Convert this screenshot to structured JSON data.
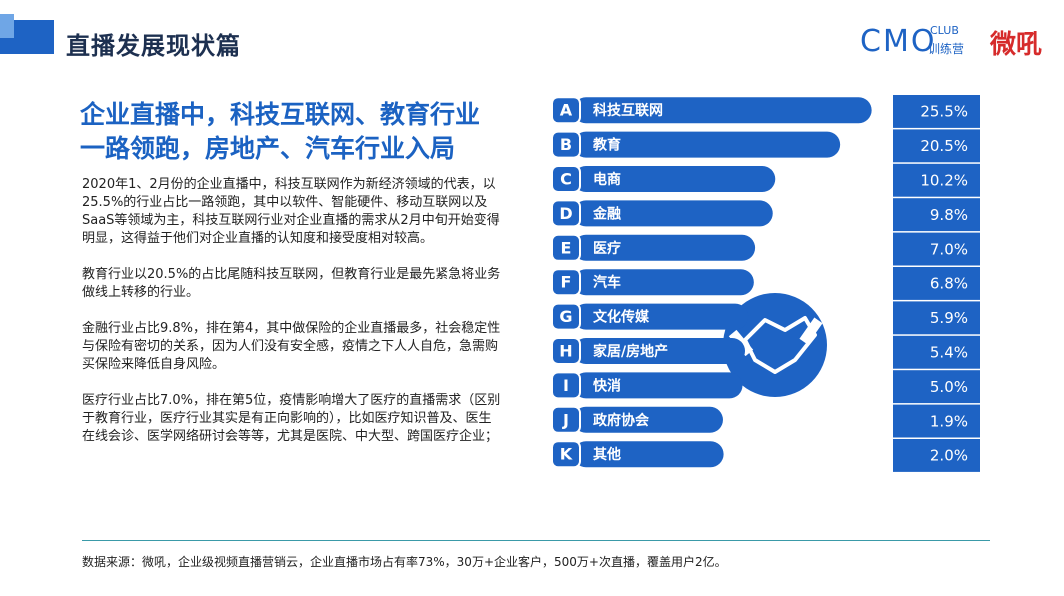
{
  "header": {
    "title": "直播发展现状篇",
    "brand": "CMO",
    "brand_club": "CLUB",
    "brand_sub": "训练营",
    "partner": "微吼"
  },
  "headline": [
    "企业直播中，科技互联网、教育行业",
    "一路领跑，房地产、汽车行业入局"
  ],
  "paragraphs": [
    "2020年1、2月份的企业直播中，科技互联网作为新经济领域的代表，以25.5%的行业占比一路领跑，其中以软件、智能硬件、移动互联网以及SaaS等领域为主，科技互联网行业对企业直播的需求从2月中旬开始变得明显，这得益于他们对企业直播的认知度和接受度相对较高。",
    "教育行业以20.5%的占比尾随科技互联网，但教育行业是最先紧急将业务做线上转移的行业。",
    "金融行业占比9.8%，排在第4，其中做保险的企业直播最多，社会稳定性与保险有密切的关系，因为人们没有安全感，疫情之下人人自危，急需购买保险来降低自身风险。",
    "医疗行业占比7.0%，排在第5位，疫情影响增大了医疗的直播需求（区别于教育行业，医疗行业其实是有正向影响的），比如医疗知识普及、医生在线会诊、医学网络研讨会等等，尤其是医院、中大型、跨国医疗企业；"
  ],
  "source": "数据来源：微吼，企业级视频直播营销云，企业直播市场占有率73%，30万+企业客户，500万+次直播，覆盖用户2亿。",
  "chart_data": {
    "type": "bar",
    "orientation": "horizontal",
    "color": "#1e63c4",
    "letters": [
      "A",
      "B",
      "C",
      "D",
      "E",
      "F",
      "G",
      "H",
      "I",
      "J",
      "K"
    ],
    "categories": [
      "科技互联网",
      "教育",
      "电商",
      "金融",
      "医疗",
      "汽车",
      "文化传媒",
      "家居/房地产",
      "快消",
      "政府协会",
      "其他"
    ],
    "values": [
      25.5,
      20.5,
      10.2,
      9.8,
      7.0,
      6.8,
      5.9,
      5.4,
      5.0,
      1.9,
      2.0
    ],
    "value_labels": [
      "25.5%",
      "20.5%",
      "10.2%",
      "9.8%",
      "7.0%",
      "6.8%",
      "5.9%",
      "5.4%",
      "5.0%",
      "1.9%",
      "2.0%"
    ]
  }
}
